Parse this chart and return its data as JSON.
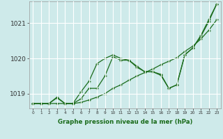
{
  "title": "Graphe pression niveau de la mer (hPa)",
  "bg_color": "#ceeaea",
  "grid_color": "#ffffff",
  "line_color": "#1a6b1a",
  "x_values": [
    0,
    1,
    2,
    3,
    4,
    5,
    6,
    7,
    8,
    9,
    10,
    11,
    12,
    13,
    14,
    15,
    16,
    17,
    18,
    19,
    20,
    21,
    22,
    23
  ],
  "ylim": [
    1018.58,
    1021.62
  ],
  "yticks": [
    1019,
    1020,
    1021
  ],
  "series_high": [
    1018.72,
    1018.72,
    1018.72,
    1018.9,
    1018.72,
    1018.72,
    1019.05,
    1019.35,
    1019.85,
    1020.0,
    1020.1,
    1020.0,
    1019.95,
    1019.78,
    1019.62,
    1019.62,
    1019.55,
    1019.15,
    1019.25,
    1020.1,
    1020.3,
    1020.65,
    1021.1,
    1021.55
  ],
  "series_mid": [
    1018.72,
    1018.72,
    1018.72,
    1018.88,
    1018.72,
    1018.72,
    1018.85,
    1019.15,
    1019.15,
    1019.5,
    1020.05,
    1019.95,
    1019.95,
    1019.75,
    1019.62,
    1019.62,
    1019.52,
    1019.15,
    1019.25,
    1020.1,
    1020.3,
    1020.62,
    1021.05,
    1021.55
  ],
  "series_straight": [
    1018.72,
    1018.72,
    1018.72,
    1018.72,
    1018.72,
    1018.72,
    1018.75,
    1018.82,
    1018.9,
    1019.0,
    1019.15,
    1019.25,
    1019.38,
    1019.5,
    1019.6,
    1019.7,
    1019.82,
    1019.92,
    1020.02,
    1020.2,
    1020.35,
    1020.55,
    1020.8,
    1021.1
  ]
}
